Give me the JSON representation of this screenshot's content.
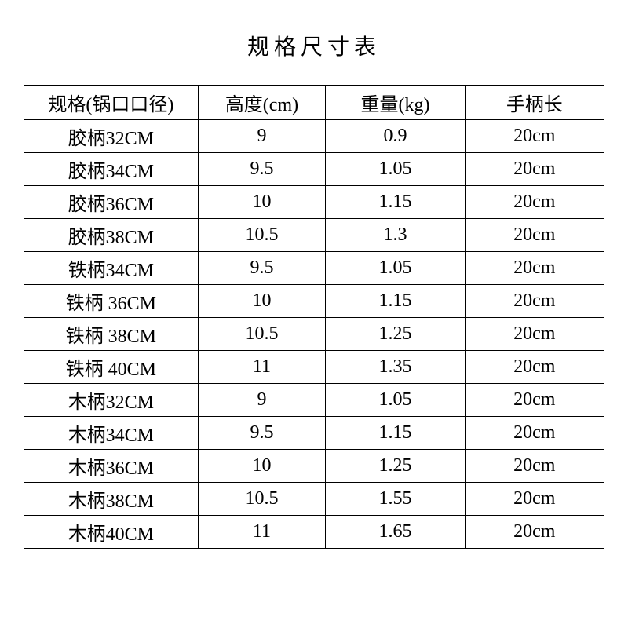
{
  "title": "规格尺寸表",
  "table": {
    "type": "table",
    "background_color": "#ffffff",
    "border_color": "#000000",
    "text_color": "#000000",
    "title_fontsize": 28,
    "cell_fontsize": 24,
    "columns": [
      {
        "label": "规格(锅口口径)",
        "width": "30%",
        "align": "center"
      },
      {
        "label": "高度(cm)",
        "width": "22%",
        "align": "center"
      },
      {
        "label": "重量(kg)",
        "width": "24%",
        "align": "center"
      },
      {
        "label": "手柄长",
        "width": "24%",
        "align": "center"
      }
    ],
    "rows": [
      [
        "胶柄32CM",
        "9",
        "0.9",
        "20cm"
      ],
      [
        "胶柄34CM",
        "9.5",
        "1.05",
        "20cm"
      ],
      [
        "胶柄36CM",
        "10",
        "1.15",
        "20cm"
      ],
      [
        "胶柄38CM",
        "10.5",
        "1.3",
        "20cm"
      ],
      [
        "铁柄34CM",
        "9.5",
        "1.05",
        "20cm"
      ],
      [
        "铁柄 36CM",
        "10",
        "1.15",
        "20cm"
      ],
      [
        "铁柄 38CM",
        "10.5",
        "1.25",
        "20cm"
      ],
      [
        "铁柄 40CM",
        "11",
        "1.35",
        "20cm"
      ],
      [
        "木柄32CM",
        "9",
        "1.05",
        "20cm"
      ],
      [
        "木柄34CM",
        "9.5",
        "1.15",
        "20cm"
      ],
      [
        "木柄36CM",
        "10",
        "1.25",
        "20cm"
      ],
      [
        "木柄38CM",
        "10.5",
        "1.55",
        "20cm"
      ],
      [
        "木柄40CM",
        "11",
        "1.65",
        "20cm"
      ]
    ]
  }
}
